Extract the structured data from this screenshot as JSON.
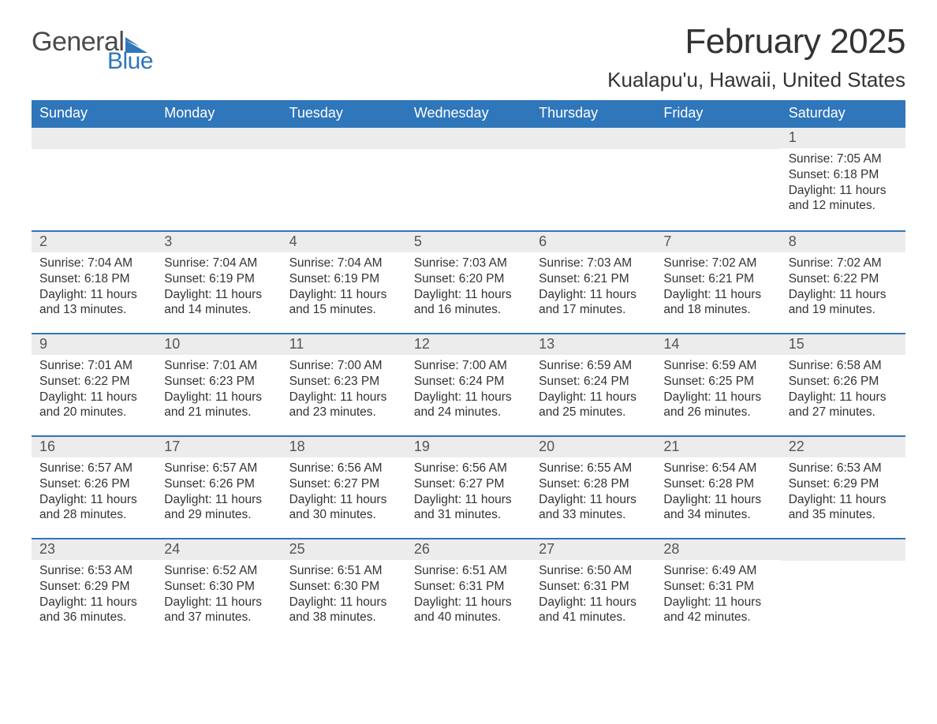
{
  "brand": {
    "word1": "General",
    "word2": "Blue",
    "logo_color": "#2f76bb",
    "text_color": "#4a4a4a"
  },
  "title": "February 2025",
  "location": "Kualapu'u, Hawaii, United States",
  "header_bg": "#2f76bb",
  "header_text_color": "#ffffff",
  "row_divider_color": "#2f76bb",
  "daynum_bg": "#ececec",
  "body_text_color": "#333333",
  "weekdays": [
    "Sunday",
    "Monday",
    "Tuesday",
    "Wednesday",
    "Thursday",
    "Friday",
    "Saturday"
  ],
  "label_sunrise": "Sunrise:",
  "label_sunset": "Sunset:",
  "label_daylight": "Daylight:",
  "weeks": [
    [
      null,
      null,
      null,
      null,
      null,
      null,
      {
        "n": 1,
        "sunrise": "7:05 AM",
        "sunset": "6:18 PM",
        "daylight": "11 hours and 12 minutes."
      }
    ],
    [
      {
        "n": 2,
        "sunrise": "7:04 AM",
        "sunset": "6:18 PM",
        "daylight": "11 hours and 13 minutes."
      },
      {
        "n": 3,
        "sunrise": "7:04 AM",
        "sunset": "6:19 PM",
        "daylight": "11 hours and 14 minutes."
      },
      {
        "n": 4,
        "sunrise": "7:04 AM",
        "sunset": "6:19 PM",
        "daylight": "11 hours and 15 minutes."
      },
      {
        "n": 5,
        "sunrise": "7:03 AM",
        "sunset": "6:20 PM",
        "daylight": "11 hours and 16 minutes."
      },
      {
        "n": 6,
        "sunrise": "7:03 AM",
        "sunset": "6:21 PM",
        "daylight": "11 hours and 17 minutes."
      },
      {
        "n": 7,
        "sunrise": "7:02 AM",
        "sunset": "6:21 PM",
        "daylight": "11 hours and 18 minutes."
      },
      {
        "n": 8,
        "sunrise": "7:02 AM",
        "sunset": "6:22 PM",
        "daylight": "11 hours and 19 minutes."
      }
    ],
    [
      {
        "n": 9,
        "sunrise": "7:01 AM",
        "sunset": "6:22 PM",
        "daylight": "11 hours and 20 minutes."
      },
      {
        "n": 10,
        "sunrise": "7:01 AM",
        "sunset": "6:23 PM",
        "daylight": "11 hours and 21 minutes."
      },
      {
        "n": 11,
        "sunrise": "7:00 AM",
        "sunset": "6:23 PM",
        "daylight": "11 hours and 23 minutes."
      },
      {
        "n": 12,
        "sunrise": "7:00 AM",
        "sunset": "6:24 PM",
        "daylight": "11 hours and 24 minutes."
      },
      {
        "n": 13,
        "sunrise": "6:59 AM",
        "sunset": "6:24 PM",
        "daylight": "11 hours and 25 minutes."
      },
      {
        "n": 14,
        "sunrise": "6:59 AM",
        "sunset": "6:25 PM",
        "daylight": "11 hours and 26 minutes."
      },
      {
        "n": 15,
        "sunrise": "6:58 AM",
        "sunset": "6:26 PM",
        "daylight": "11 hours and 27 minutes."
      }
    ],
    [
      {
        "n": 16,
        "sunrise": "6:57 AM",
        "sunset": "6:26 PM",
        "daylight": "11 hours and 28 minutes."
      },
      {
        "n": 17,
        "sunrise": "6:57 AM",
        "sunset": "6:26 PM",
        "daylight": "11 hours and 29 minutes."
      },
      {
        "n": 18,
        "sunrise": "6:56 AM",
        "sunset": "6:27 PM",
        "daylight": "11 hours and 30 minutes."
      },
      {
        "n": 19,
        "sunrise": "6:56 AM",
        "sunset": "6:27 PM",
        "daylight": "11 hours and 31 minutes."
      },
      {
        "n": 20,
        "sunrise": "6:55 AM",
        "sunset": "6:28 PM",
        "daylight": "11 hours and 33 minutes."
      },
      {
        "n": 21,
        "sunrise": "6:54 AM",
        "sunset": "6:28 PM",
        "daylight": "11 hours and 34 minutes."
      },
      {
        "n": 22,
        "sunrise": "6:53 AM",
        "sunset": "6:29 PM",
        "daylight": "11 hours and 35 minutes."
      }
    ],
    [
      {
        "n": 23,
        "sunrise": "6:53 AM",
        "sunset": "6:29 PM",
        "daylight": "11 hours and 36 minutes."
      },
      {
        "n": 24,
        "sunrise": "6:52 AM",
        "sunset": "6:30 PM",
        "daylight": "11 hours and 37 minutes."
      },
      {
        "n": 25,
        "sunrise": "6:51 AM",
        "sunset": "6:30 PM",
        "daylight": "11 hours and 38 minutes."
      },
      {
        "n": 26,
        "sunrise": "6:51 AM",
        "sunset": "6:31 PM",
        "daylight": "11 hours and 40 minutes."
      },
      {
        "n": 27,
        "sunrise": "6:50 AM",
        "sunset": "6:31 PM",
        "daylight": "11 hours and 41 minutes."
      },
      {
        "n": 28,
        "sunrise": "6:49 AM",
        "sunset": "6:31 PM",
        "daylight": "11 hours and 42 minutes."
      },
      null
    ]
  ]
}
